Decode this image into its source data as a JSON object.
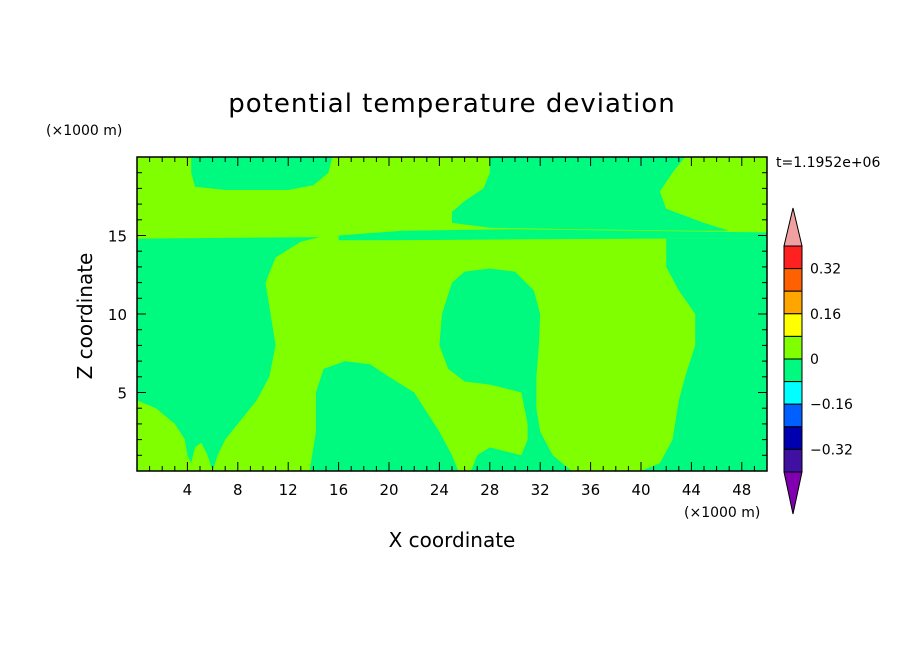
{
  "chart_data": {
    "type": "heatmap",
    "title": "potential temperature deviation",
    "xlabel": "X coordinate",
    "ylabel": "Z coordinate",
    "x_unit": "(×1000 m)",
    "y_unit": "(×1000 m)",
    "time_label": "t=1.1952e+06",
    "xlim": [
      0,
      50
    ],
    "ylim": [
      0,
      20
    ],
    "x_ticks": [
      4,
      8,
      12,
      16,
      20,
      24,
      28,
      32,
      36,
      40,
      44,
      48
    ],
    "y_ticks": [
      5,
      10,
      15
    ],
    "background_level": "0 to 0.08 (light green)",
    "regions": [
      {
        "level": "-0.08 to 0",
        "color": "#00fa80",
        "points": [
          [
            0,
            0
          ],
          [
            0,
            4.5
          ],
          [
            1.5,
            4
          ],
          [
            3,
            3
          ],
          [
            3.8,
            2
          ],
          [
            4,
            1
          ],
          [
            4.3,
            0.5
          ],
          [
            4.6,
            1.5
          ],
          [
            5.1,
            1.8
          ],
          [
            5.6,
            1
          ],
          [
            6,
            0
          ],
          [
            6.4,
            1
          ],
          [
            7,
            2
          ],
          [
            8,
            3
          ],
          [
            9.5,
            4.5
          ],
          [
            10.5,
            6
          ],
          [
            11,
            8
          ],
          [
            10.6,
            10
          ],
          [
            10.2,
            12
          ],
          [
            11,
            13.6
          ],
          [
            13,
            14.6
          ],
          [
            14.5,
            14.9
          ],
          [
            0,
            14.8
          ]
        ]
      },
      {
        "level": "-0.08 to 0",
        "color": "#00fa80",
        "points": [
          [
            44,
            14.8
          ],
          [
            42,
            14.8
          ],
          [
            42,
            13
          ],
          [
            43,
            11.5
          ],
          [
            44.3,
            10
          ],
          [
            44.3,
            8
          ],
          [
            43.5,
            6
          ],
          [
            43,
            4.5
          ],
          [
            42.5,
            2
          ],
          [
            41.5,
            0.5
          ],
          [
            40,
            0
          ],
          [
            50,
            0
          ],
          [
            50,
            14.8
          ]
        ]
      },
      {
        "level": "-0.08 to 0",
        "color": "#00fa80",
        "points": [
          [
            13.7,
            0
          ],
          [
            14.2,
            2.5
          ],
          [
            14.2,
            5
          ],
          [
            14.8,
            6.5
          ],
          [
            16.5,
            7
          ],
          [
            18.5,
            6.8
          ],
          [
            20,
            6
          ],
          [
            22,
            5
          ],
          [
            24,
            2.5
          ],
          [
            25,
            1
          ],
          [
            25.5,
            0
          ]
        ]
      },
      {
        "level": "-0.08 to 0",
        "color": "#00fa80",
        "points": [
          [
            26.5,
            0
          ],
          [
            27,
            1
          ],
          [
            28,
            1.5
          ],
          [
            30.5,
            1
          ],
          [
            31,
            2
          ],
          [
            31,
            3
          ],
          [
            30.5,
            5
          ],
          [
            28,
            5.5
          ],
          [
            26,
            5.7
          ],
          [
            24.7,
            6.5
          ],
          [
            24,
            8
          ],
          [
            24.2,
            10
          ],
          [
            25,
            12
          ],
          [
            26,
            12.7
          ],
          [
            28,
            12.9
          ],
          [
            30,
            12.7
          ],
          [
            31.5,
            11.5
          ],
          [
            32,
            10
          ],
          [
            31.9,
            8
          ],
          [
            31.7,
            6
          ],
          [
            31.7,
            4
          ],
          [
            32,
            2.5
          ],
          [
            33,
            1
          ],
          [
            34.5,
            0
          ]
        ]
      },
      {
        "level": "-0.08 to 0",
        "color": "#00fa80",
        "points": [
          [
            16,
            14.7
          ],
          [
            20,
            14.7
          ],
          [
            30,
            14.75
          ],
          [
            42,
            14.8
          ],
          [
            50,
            14.8
          ],
          [
            50,
            15.2
          ],
          [
            30,
            15.4
          ],
          [
            21,
            15.3
          ],
          [
            16,
            15.0
          ]
        ]
      },
      {
        "level": "-0.08 to 0",
        "color": "#00fa80",
        "points": [
          [
            4.3,
            20
          ],
          [
            4.3,
            19
          ],
          [
            4.6,
            18.1
          ],
          [
            7,
            17.9
          ],
          [
            12,
            17.9
          ],
          [
            14,
            18.2
          ],
          [
            15.2,
            19
          ],
          [
            15.5,
            20
          ]
        ]
      },
      {
        "level": "-0.08 to 0",
        "color": "#00fa80",
        "points": [
          [
            28,
            20
          ],
          [
            28,
            19
          ],
          [
            27.5,
            18
          ],
          [
            26,
            17.2
          ],
          [
            25,
            16.5
          ],
          [
            25,
            15.8
          ],
          [
            28,
            15.5
          ],
          [
            35,
            15.4
          ],
          [
            44,
            15.3
          ],
          [
            47,
            15.3
          ],
          [
            45,
            15.8
          ],
          [
            42,
            16.7
          ],
          [
            41.5,
            17.8
          ],
          [
            42.5,
            19
          ],
          [
            43.5,
            20
          ]
        ]
      }
    ],
    "colorbar": {
      "ticks": [
        "0.32",
        "0.16",
        "0",
        "−0.16",
        "−0.32"
      ],
      "levels": [
        {
          "range": "above 0.40",
          "color": "#f0a0a0"
        },
        {
          "range": "0.32 to 0.40",
          "color": "#ff2020"
        },
        {
          "range": "0.24 to 0.32",
          "color": "#ff6000"
        },
        {
          "range": "0.16 to 0.24",
          "color": "#ffa500"
        },
        {
          "range": "0.08 to 0.16",
          "color": "#ffff00"
        },
        {
          "range": "0 to 0.08",
          "color": "#80ff00"
        },
        {
          "range": "-0.08 to 0",
          "color": "#00fa80"
        },
        {
          "range": "-0.16 to -0.08",
          "color": "#00ffff"
        },
        {
          "range": "-0.24 to -0.16",
          "color": "#0060ff"
        },
        {
          "range": "-0.32 to -0.24",
          "color": "#0000b0"
        },
        {
          "range": "-0.40 to -0.32",
          "color": "#4010a0"
        },
        {
          "range": "below -0.40",
          "color": "#8000b0"
        }
      ]
    },
    "colors": {
      "background_field": "#80ff00",
      "negative_field": "#00fa80"
    }
  }
}
